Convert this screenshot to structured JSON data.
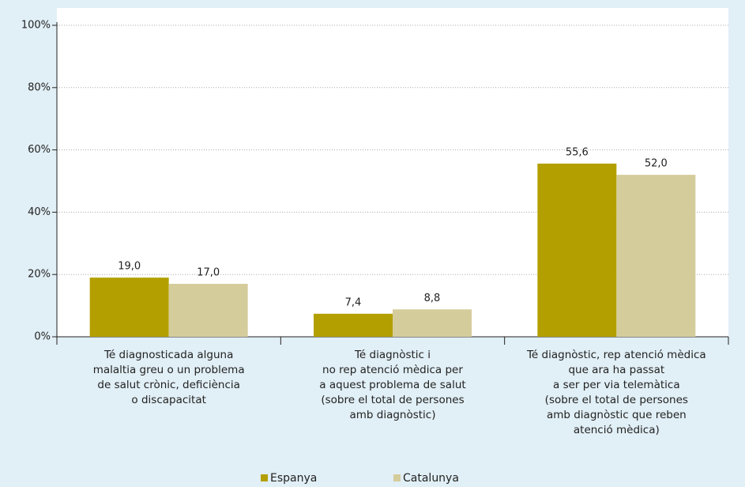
{
  "chart_data": {
    "type": "bar",
    "categories": [
      "Té diagnosticada alguna\nmalaltia greu  o un problema\nde salut crònic, deficiència\no discapacitat",
      "Té diagnòstic i\nno rep atenció mèdica per\na aquest  problema de salut\n(sobre el total de persones\namb diagnòstic)",
      "Té diagnòstic, rep atenció mèdica\nque ara ha passat\na ser per via telemàtica\n(sobre el total de persones\namb diagnòstic que reben\natenció mèdica)"
    ],
    "series": [
      {
        "name": "Espanya",
        "color": "#b3a000",
        "values": [
          19.0,
          7.4,
          55.6
        ],
        "value_labels": [
          "19,0",
          "7,4",
          "55,6"
        ]
      },
      {
        "name": "Catalunya",
        "color": "#d5cc9c",
        "values": [
          17.0,
          8.8,
          52.0
        ],
        "value_labels": [
          "17,0",
          "8,8",
          "52,0"
        ]
      }
    ],
    "ylim": [
      0,
      100
    ],
    "yticks": [
      {
        "value": 0,
        "label": "0%"
      },
      {
        "value": 20,
        "label": "20%"
      },
      {
        "value": 40,
        "label": "40%"
      },
      {
        "value": 60,
        "label": "60%"
      },
      {
        "value": 80,
        "label": "80%"
      },
      {
        "value": 100,
        "label": "100%"
      }
    ],
    "grid": true,
    "legend": "bottom"
  }
}
